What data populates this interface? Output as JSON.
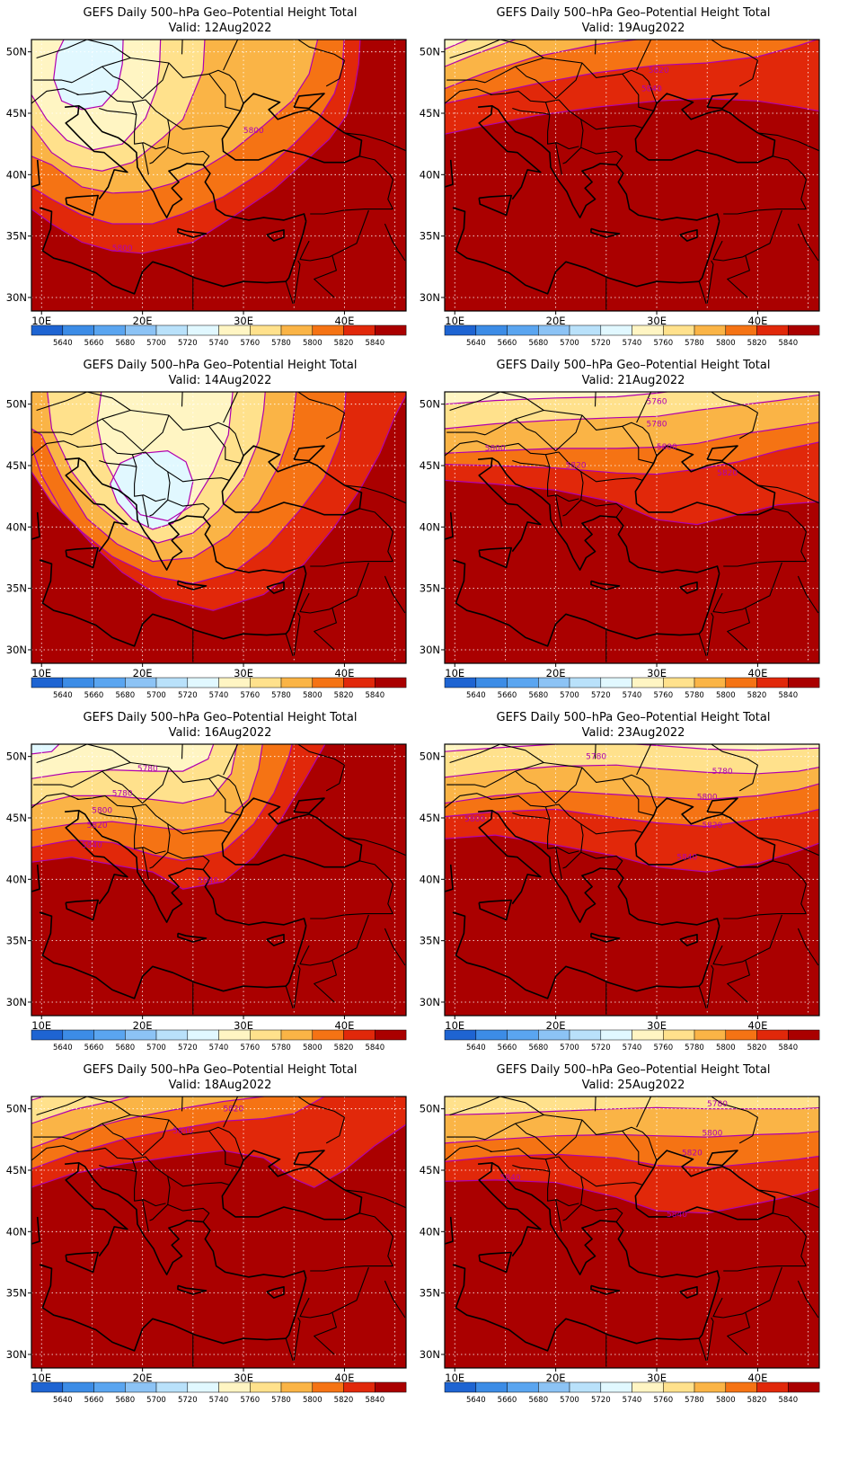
{
  "figure": {
    "title": "GEFS Daily 500–hPa Geo–Potential Height Total",
    "valid_prefix": "Valid:",
    "lat_labels": [
      "50N",
      "45N",
      "40N",
      "35N",
      "30N"
    ],
    "lon_labels": [
      "10E",
      "20E",
      "30E",
      "40E"
    ],
    "colorbar": {
      "labels": [
        "5640",
        "5660",
        "5680",
        "5700",
        "5720",
        "5740",
        "5760",
        "5780",
        "5800",
        "5820",
        "5840"
      ],
      "colors": [
        "#1e64d2",
        "#3c8ce6",
        "#5aa5f0",
        "#8cc3f5",
        "#b9e1fa",
        "#e1f8ff",
        "#fff5c3",
        "#ffe18c",
        "#fab446",
        "#f57314",
        "#e1280a",
        "#aa0000"
      ]
    },
    "contour_color": "#b000b0",
    "panels": [
      {
        "valid": "12Aug2022",
        "contour_labels": [
          "5800",
          "5800"
        ]
      },
      {
        "valid": "19Aug2022",
        "contour_labels": [
          "5820",
          "5840"
        ]
      },
      {
        "valid": "14Aug2022",
        "contour_labels": []
      },
      {
        "valid": "21Aug2022",
        "contour_labels": [
          "5760",
          "5780",
          "5800",
          "5800",
          "5820",
          "5820"
        ]
      },
      {
        "valid": "16Aug2022",
        "contour_labels": [
          "5780",
          "5780",
          "5800",
          "5820",
          "5840",
          "5840"
        ]
      },
      {
        "valid": "23Aug2022",
        "contour_labels": [
          "5780",
          "5780",
          "5800",
          "5800",
          "5820",
          "5840"
        ]
      },
      {
        "valid": "18Aug2022",
        "contour_labels": [
          "5820",
          "5840"
        ]
      },
      {
        "valid": "25Aug2022",
        "contour_labels": [
          "5780",
          "5800",
          "5820",
          "5840",
          "5840"
        ]
      }
    ]
  }
}
